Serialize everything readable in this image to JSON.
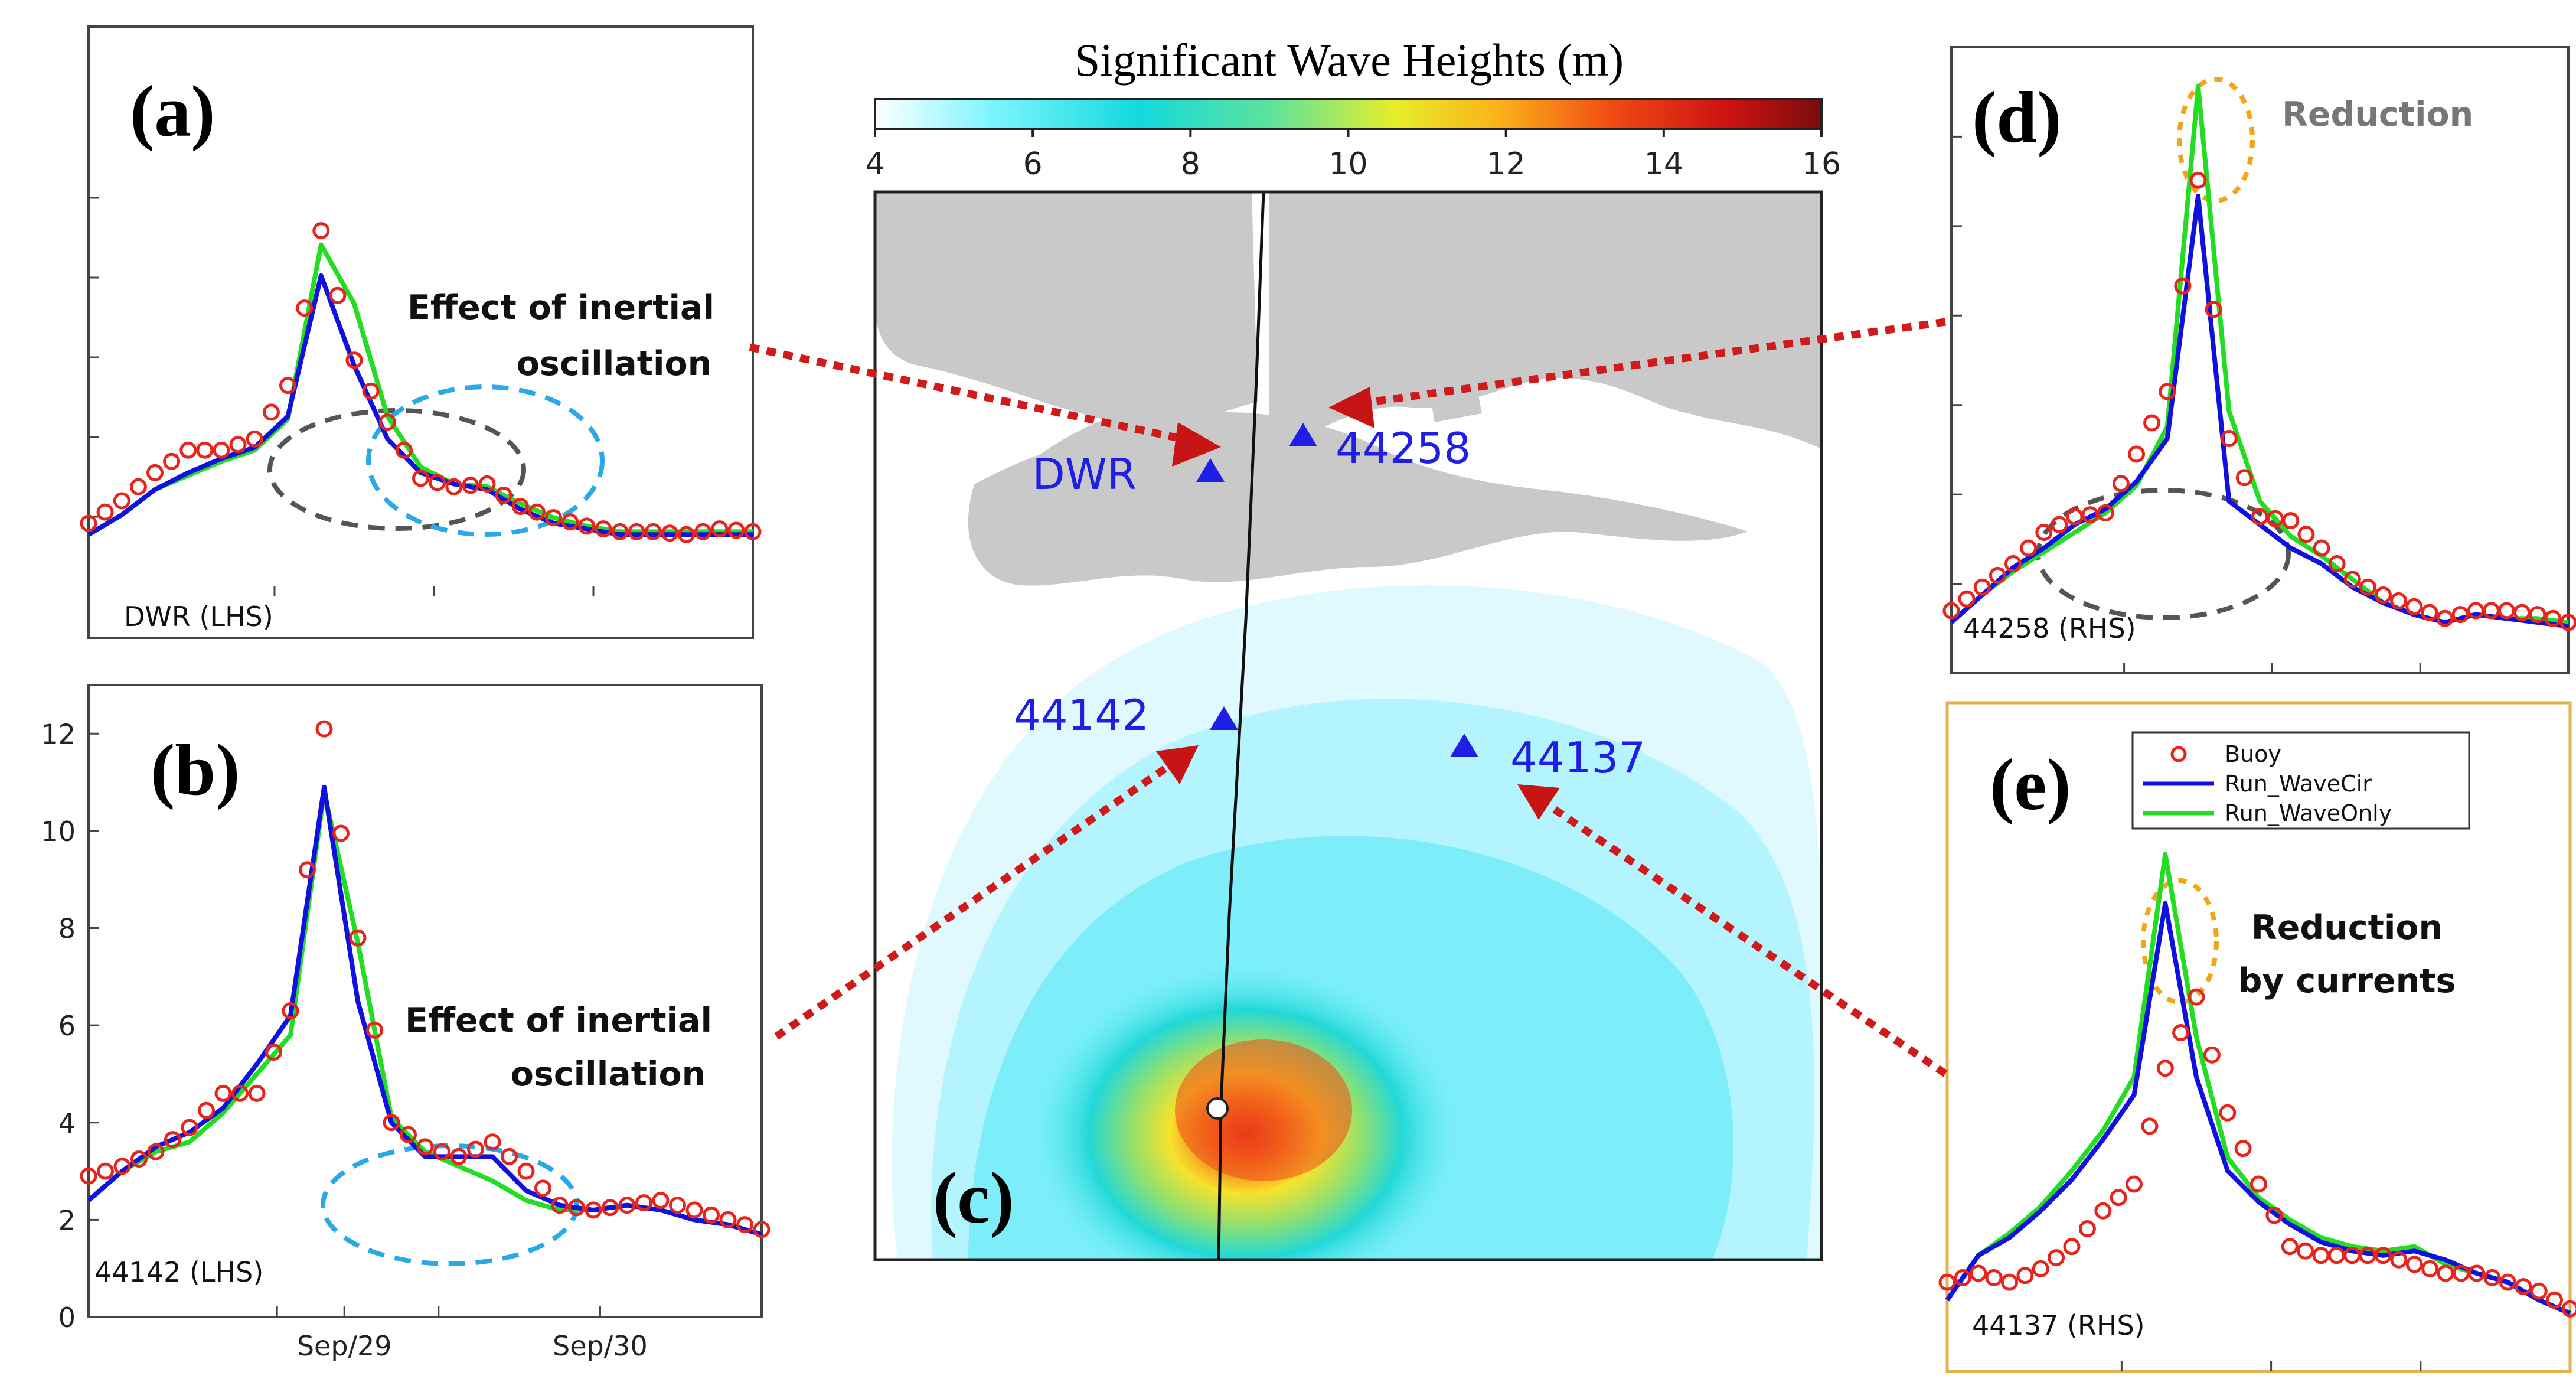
{
  "colors": {
    "buoy": "#e8241c",
    "run_wavecir": "#1010e0",
    "run_waveonly": "#22dd22",
    "land": "#c9c9c9",
    "arrow": "#d11a1a",
    "circle_gray": "#555555",
    "circle_blue": "#2aa8e8",
    "circle_orange": "#f3a51a",
    "station_marker": "#1e1ee6",
    "panel_e_border": "#e1b24c"
  },
  "colorbar": {
    "title": "Significant Wave Heights (m)",
    "ticks": [
      "4",
      "6",
      "8",
      "10",
      "12",
      "14",
      "16"
    ],
    "range": [
      4,
      16
    ],
    "colormap": "jet"
  },
  "map": {
    "label": "(c)",
    "stations": [
      {
        "name": "DWR",
        "side": "left"
      },
      {
        "name": "44258",
        "side": "right"
      },
      {
        "name": "44142",
        "side": "left"
      },
      {
        "name": "44137",
        "side": "right"
      }
    ]
  },
  "legend": {
    "entries": [
      "Buoy",
      "Run_WaveCir",
      "Run_WaveOnly"
    ]
  },
  "chart_data": [
    {
      "type": "line",
      "panel": "(a)",
      "station_label": "DWR (LHS)",
      "annotation": [
        "Effect of inertial",
        "oscillation"
      ],
      "x": [
        0,
        0.25,
        0.5,
        0.75,
        1.0,
        1.25,
        1.5,
        1.75,
        2.0,
        2.25,
        2.5,
        2.75,
        3.0,
        3.25,
        3.5,
        3.75,
        4.0,
        4.25,
        4.5,
        4.75,
        5.0
      ],
      "series": [
        {
          "name": "Run_WaveCir",
          "values": [
            2.2,
            2.9,
            3.8,
            4.4,
            4.9,
            5.3,
            6.4,
            11.4,
            8.2,
            5.6,
            4.4,
            4.0,
            3.8,
            3.1,
            2.6,
            2.4,
            2.2,
            2.2,
            2.2,
            2.2,
            2.2
          ]
        },
        {
          "name": "Run_WaveOnly",
          "values": [
            2.2,
            2.9,
            3.8,
            4.3,
            4.8,
            5.2,
            6.3,
            12.5,
            10.4,
            6.4,
            4.6,
            4.0,
            3.9,
            3.3,
            2.8,
            2.5,
            2.3,
            2.3,
            2.3,
            2.3,
            2.3
          ]
        },
        {
          "name": "Buoy",
          "values": [
            2.6,
            3.4,
            4.4,
            5.2,
            5.2,
            5.6,
            7.5,
            13.0,
            8.4,
            6.2,
            4.2,
            3.9,
            4.0,
            3.2,
            2.8,
            2.5,
            2.3,
            2.3,
            2.2,
            2.4,
            2.3
          ]
        }
      ]
    },
    {
      "type": "line",
      "panel": "(b)",
      "station_label": "44142 (LHS)",
      "annotation": [
        "Effect of inertial",
        "oscillation"
      ],
      "yticks": [
        "0",
        "2",
        "4",
        "6",
        "8",
        "10",
        "12"
      ],
      "ylim": [
        0,
        13
      ],
      "xticks": [
        {
          "label": "Sep/29",
          "x": 1.9
        },
        {
          "label": "Sep/30",
          "x": 3.8
        }
      ],
      "x": [
        0,
        0.25,
        0.5,
        0.75,
        1.0,
        1.25,
        1.5,
        1.75,
        2.0,
        2.25,
        2.5,
        2.75,
        3.0,
        3.25,
        3.5,
        3.75,
        4.0,
        4.25,
        4.5,
        4.75,
        5.0
      ],
      "series": [
        {
          "name": "Run_WaveCir",
          "values": [
            2.4,
            3.0,
            3.5,
            3.8,
            4.3,
            5.2,
            6.2,
            10.9,
            6.5,
            4.0,
            3.3,
            3.3,
            3.3,
            2.6,
            2.3,
            2.2,
            2.3,
            2.2,
            2.0,
            1.9,
            1.7
          ]
        },
        {
          "name": "Run_WaveOnly",
          "values": [
            2.4,
            3.0,
            3.4,
            3.6,
            4.2,
            5.0,
            5.8,
            10.8,
            7.7,
            4.1,
            3.4,
            3.1,
            2.8,
            2.4,
            2.2,
            2.2,
            2.3,
            2.2,
            2.0,
            1.9,
            1.7
          ]
        },
        {
          "name": "Buoy",
          "values": [
            2.9,
            3.1,
            3.4,
            3.9,
            4.6,
            4.6,
            6.3,
            12.1,
            7.8,
            4.0,
            3.5,
            3.3,
            3.6,
            3.0,
            2.3,
            2.2,
            2.3,
            2.4,
            2.2,
            2.0,
            1.8
          ]
        }
      ]
    },
    {
      "type": "line",
      "panel": "(d)",
      "station_label": "44258 (RHS)",
      "annotation": [
        "Reduction"
      ],
      "x": [
        0,
        0.25,
        0.5,
        0.75,
        1.0,
        1.25,
        1.5,
        1.75,
        2.0,
        2.25,
        2.5,
        2.75,
        3.0,
        3.25,
        3.5,
        3.75,
        4.0,
        4.25,
        4.5,
        4.75,
        5.0
      ],
      "series": [
        {
          "name": "Run_WaveCir",
          "values": [
            1.3,
            2.0,
            2.7,
            3.2,
            3.8,
            4.2,
            4.9,
            6.0,
            12.2,
            4.4,
            3.8,
            3.2,
            2.8,
            2.2,
            1.8,
            1.5,
            1.3,
            1.5,
            1.4,
            1.3,
            1.2
          ]
        },
        {
          "name": "Run_WaveOnly",
          "values": [
            1.3,
            2.0,
            2.6,
            3.1,
            3.6,
            4.1,
            4.8,
            6.3,
            15.0,
            6.7,
            4.4,
            3.5,
            3.0,
            2.4,
            1.8,
            1.5,
            1.3,
            1.5,
            1.4,
            1.4,
            1.3
          ]
        },
        {
          "name": "Buoy",
          "values": [
            1.6,
            2.2,
            2.8,
            3.6,
            4.0,
            4.1,
            5.6,
            7.2,
            12.6,
            6.0,
            4.0,
            3.9,
            3.2,
            2.4,
            2.0,
            1.7,
            1.4,
            1.6,
            1.6,
            1.5,
            1.3
          ]
        }
      ]
    },
    {
      "type": "line",
      "panel": "(e)",
      "station_label": "44137 (RHS)",
      "annotation": [
        "Reduction",
        "by currents"
      ],
      "x": [
        0,
        0.25,
        0.5,
        0.75,
        1.0,
        1.25,
        1.5,
        1.75,
        2.0,
        2.25,
        2.5,
        2.75,
        3.0,
        3.25,
        3.5,
        3.75,
        4.0,
        4.25,
        4.5,
        4.75,
        5.0
      ],
      "series": [
        {
          "name": "Run_WaveCir",
          "values": [
            1.6,
            2.6,
            3.0,
            3.6,
            4.3,
            5.2,
            6.2,
            10.5,
            6.6,
            4.5,
            3.8,
            3.3,
            2.9,
            2.7,
            2.6,
            2.7,
            2.5,
            2.2,
            2.0,
            1.6,
            1.3
          ]
        },
        {
          "name": "Run_WaveOnly",
          "values": [
            1.6,
            2.6,
            3.1,
            3.7,
            4.5,
            5.4,
            6.6,
            11.6,
            7.5,
            4.8,
            3.9,
            3.4,
            3.0,
            2.8,
            2.7,
            2.8,
            2.4,
            2.2,
            2.0,
            1.6,
            1.3
          ]
        },
        {
          "name": "Buoy",
          "values": [
            2.0,
            2.2,
            2.0,
            2.3,
            2.8,
            3.6,
            4.2,
            6.8,
            8.4,
            5.8,
            4.2,
            2.8,
            2.6,
            2.6,
            2.6,
            2.4,
            2.2,
            2.2,
            2.0,
            1.8,
            1.4
          ]
        }
      ]
    }
  ]
}
